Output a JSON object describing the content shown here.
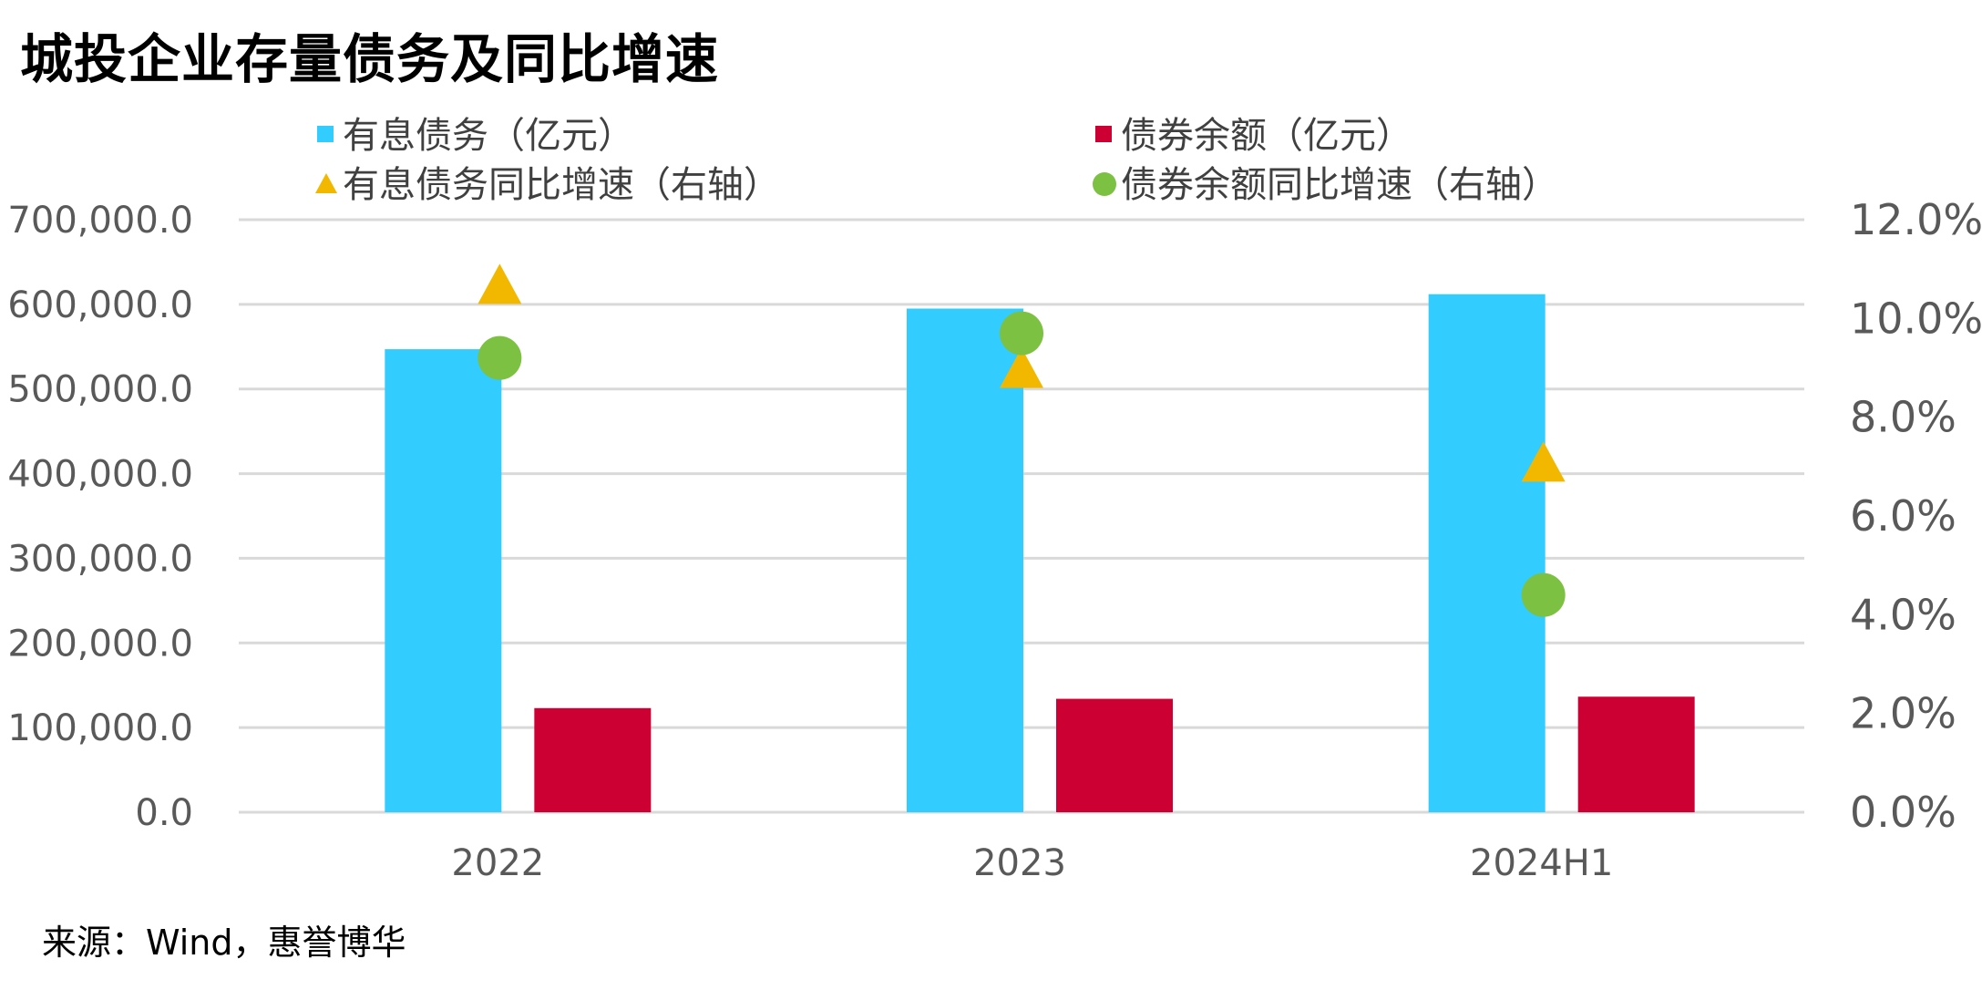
{
  "title": "城投企业存量债务及同比增速",
  "source": "来源：Wind，惠誉博华",
  "colors": {
    "interest_debt": "#33CCFF",
    "bond_balance": "#CC0033",
    "interest_debt_growth": "#F2B800",
    "bond_balance_growth": "#7CC142",
    "grid": "#D9D9D9",
    "tick_text": "#595959"
  },
  "chart_data": {
    "type": "bar",
    "categories": [
      "2022",
      "2023",
      "2024H1"
    ],
    "series": [
      {
        "name": "有息债务（亿元）",
        "kind": "bar",
        "axis": "left",
        "marker": "square",
        "values": [
          547000,
          595000,
          612000
        ]
      },
      {
        "name": "债券余额（亿元）",
        "kind": "bar",
        "axis": "left",
        "marker": "square",
        "values": [
          123000,
          134000,
          136500
        ]
      },
      {
        "name": "有息债务同比增速（右轴）",
        "kind": "scatter",
        "axis": "right",
        "marker": "triangle",
        "values": [
          10.7,
          9.0,
          7.1
        ]
      },
      {
        "name": "债券余额同比增速（右轴）",
        "kind": "scatter",
        "axis": "right",
        "marker": "circle",
        "values": [
          9.2,
          9.7,
          4.4
        ]
      }
    ],
    "y_left": {
      "min": 0,
      "max": 700000,
      "step": 100000,
      "tick_labels": [
        "0.0",
        "100,000.0",
        "200,000.0",
        "300,000.0",
        "400,000.0",
        "500,000.0",
        "600,000.0",
        "700,000.0"
      ]
    },
    "y_right": {
      "min": 0,
      "max": 12,
      "step": 2,
      "tick_labels": [
        "0.0%",
        "2.0%",
        "4.0%",
        "6.0%",
        "8.0%",
        "10.0%",
        "12.0%"
      ]
    },
    "grid": true,
    "legend_position": "top"
  }
}
